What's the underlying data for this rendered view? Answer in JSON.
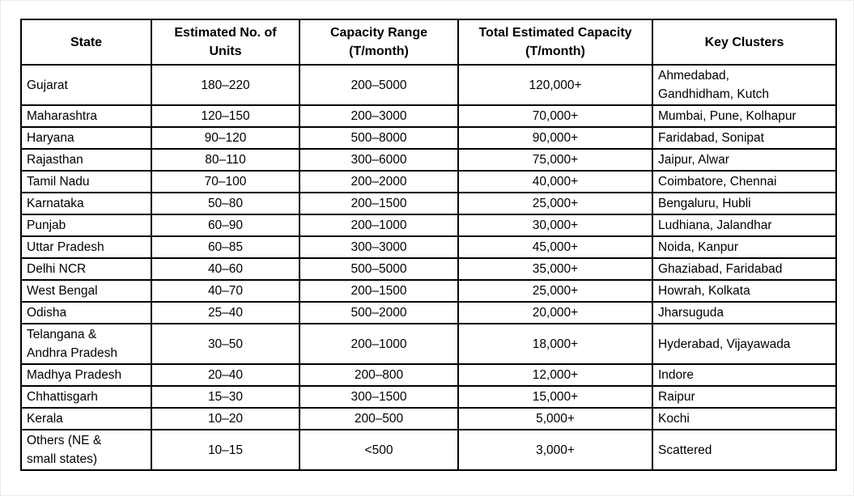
{
  "table": {
    "columns": [
      "State",
      "Estimated No. of\nUnits",
      "Capacity Range\n(T/month)",
      "Total Estimated Capacity\n(T/month)",
      "Key Clusters"
    ],
    "rows": [
      {
        "state": "Gujarat",
        "units": "180–220",
        "capacity_range": "200–5000",
        "total_capacity": "120,000+",
        "clusters": "Ahmedabad,\nGandhidham, Kutch"
      },
      {
        "state": "Maharashtra",
        "units": "120–150",
        "capacity_range": "200–3000",
        "total_capacity": "70,000+",
        "clusters": "Mumbai, Pune, Kolhapur"
      },
      {
        "state": "Haryana",
        "units": "90–120",
        "capacity_range": "500–8000",
        "total_capacity": "90,000+",
        "clusters": "Faridabad, Sonipat"
      },
      {
        "state": "Rajasthan",
        "units": "80–110",
        "capacity_range": "300–6000",
        "total_capacity": "75,000+",
        "clusters": "Jaipur, Alwar"
      },
      {
        "state": "Tamil Nadu",
        "units": "70–100",
        "capacity_range": "200–2000",
        "total_capacity": "40,000+",
        "clusters": "Coimbatore, Chennai"
      },
      {
        "state": "Karnataka",
        "units": "50–80",
        "capacity_range": "200–1500",
        "total_capacity": "25,000+",
        "clusters": "Bengaluru, Hubli"
      },
      {
        "state": "Punjab",
        "units": "60–90",
        "capacity_range": "200–1000",
        "total_capacity": "30,000+",
        "clusters": "Ludhiana, Jalandhar"
      },
      {
        "state": "Uttar Pradesh",
        "units": "60–85",
        "capacity_range": "300–3000",
        "total_capacity": "45,000+",
        "clusters": "Noida, Kanpur"
      },
      {
        "state": "Delhi NCR",
        "units": "40–60",
        "capacity_range": "500–5000",
        "total_capacity": "35,000+",
        "clusters": "Ghaziabad, Faridabad"
      },
      {
        "state": "West Bengal",
        "units": "40–70",
        "capacity_range": "200–1500",
        "total_capacity": "25,000+",
        "clusters": "Howrah, Kolkata"
      },
      {
        "state": "Odisha",
        "units": "25–40",
        "capacity_range": "500–2000",
        "total_capacity": "20,000+",
        "clusters": "Jharsuguda"
      },
      {
        "state": "Telangana &\nAndhra Pradesh",
        "units": "30–50",
        "capacity_range": "200–1000",
        "total_capacity": "18,000+",
        "clusters": "Hyderabad, Vijayawada"
      },
      {
        "state": "Madhya Pradesh",
        "units": "20–40",
        "capacity_range": "200–800",
        "total_capacity": "12,000+",
        "clusters": "Indore"
      },
      {
        "state": "Chhattisgarh",
        "units": "15–30",
        "capacity_range": "300–1500",
        "total_capacity": "15,000+",
        "clusters": "Raipur"
      },
      {
        "state": "Kerala",
        "units": "10–20",
        "capacity_range": "200–500",
        "total_capacity": "5,000+",
        "clusters": "Kochi"
      },
      {
        "state": "Others (NE &\nsmall states)",
        "units": "10–15",
        "capacity_range": "<500",
        "total_capacity": "3,000+",
        "clusters": "Scattered"
      }
    ]
  }
}
